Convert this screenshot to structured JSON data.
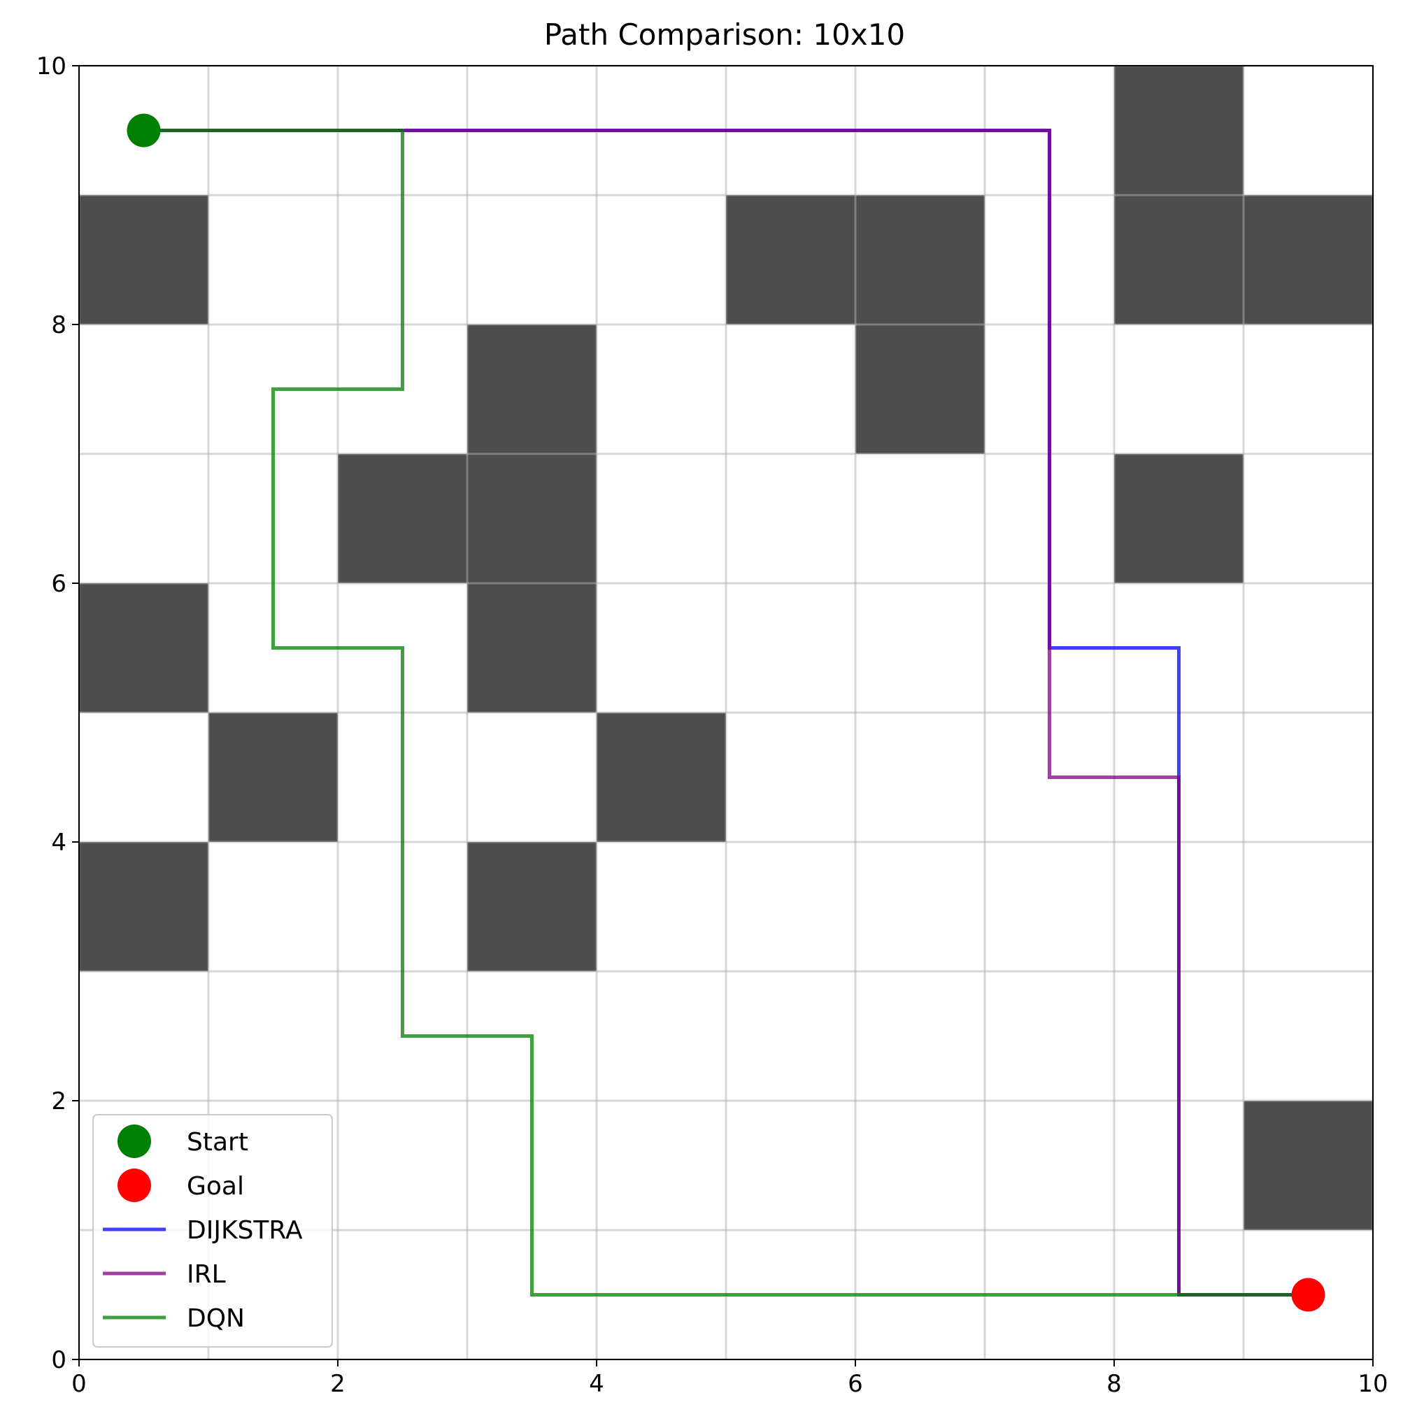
{
  "chart_data": {
    "type": "line",
    "title": "Path Comparison: 10x10",
    "xlabel": "",
    "ylabel": "",
    "xlim": [
      0,
      10
    ],
    "ylim": [
      0,
      10
    ],
    "grid": true,
    "legend_position": "lower-left",
    "xticks": [
      0,
      2,
      4,
      6,
      8,
      10
    ],
    "yticks": [
      0,
      2,
      4,
      6,
      8,
      10
    ],
    "obstacle_color": "#4d4d4d",
    "obstacles": [
      {
        "x": 0,
        "y": 8
      },
      {
        "x": 5,
        "y": 8
      },
      {
        "x": 6,
        "y": 8
      },
      {
        "x": 8,
        "y": 8
      },
      {
        "x": 9,
        "y": 8
      },
      {
        "x": 8,
        "y": 9
      },
      {
        "x": 3,
        "y": 7
      },
      {
        "x": 6,
        "y": 7
      },
      {
        "x": 2,
        "y": 6
      },
      {
        "x": 3,
        "y": 6
      },
      {
        "x": 8,
        "y": 6
      },
      {
        "x": 0,
        "y": 5
      },
      {
        "x": 3,
        "y": 5
      },
      {
        "x": 1,
        "y": 4
      },
      {
        "x": 4,
        "y": 4
      },
      {
        "x": 0,
        "y": 3
      },
      {
        "x": 3,
        "y": 3
      },
      {
        "x": 9,
        "y": 1
      }
    ],
    "start": {
      "label": "Start",
      "x": 0.5,
      "y": 9.5,
      "color": "#008000"
    },
    "goal": {
      "label": "Goal",
      "x": 9.5,
      "y": 0.5,
      "color": "#ff0000"
    },
    "series": [
      {
        "name": "DIJKSTRA",
        "color": "#0000ff",
        "points": [
          [
            0.5,
            9.5
          ],
          [
            7.5,
            9.5
          ],
          [
            7.5,
            5.5
          ],
          [
            8.5,
            5.5
          ],
          [
            8.5,
            0.5
          ],
          [
            9.5,
            0.5
          ]
        ]
      },
      {
        "name": "IRL",
        "color": "#800080",
        "points": [
          [
            0.5,
            9.5
          ],
          [
            7.5,
            9.5
          ],
          [
            7.5,
            4.5
          ],
          [
            8.5,
            4.5
          ],
          [
            8.5,
            0.5
          ],
          [
            9.5,
            0.5
          ]
        ]
      },
      {
        "name": "DQN",
        "color": "#008000",
        "points": [
          [
            0.5,
            9.5
          ],
          [
            2.5,
            9.5
          ],
          [
            2.5,
            7.5
          ],
          [
            1.5,
            7.5
          ],
          [
            1.5,
            5.5
          ],
          [
            2.5,
            5.5
          ],
          [
            2.5,
            2.5
          ],
          [
            3.5,
            2.5
          ],
          [
            3.5,
            0.5
          ],
          [
            9.5,
            0.5
          ]
        ]
      }
    ]
  }
}
